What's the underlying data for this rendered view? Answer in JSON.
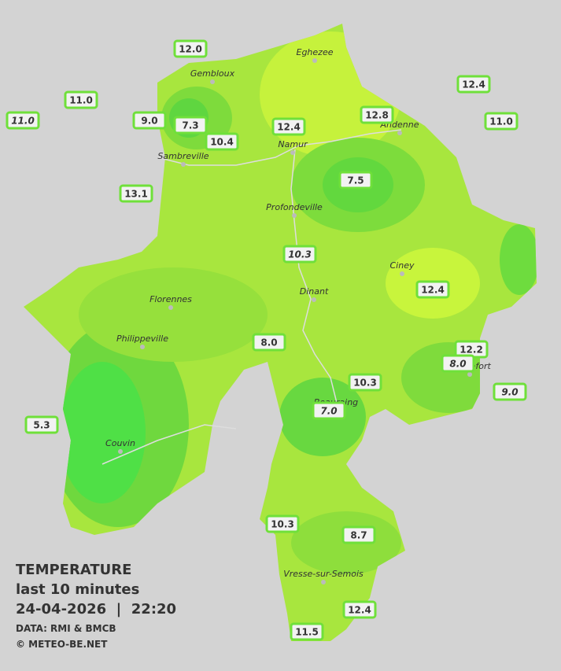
{
  "stations": [
    {
      "label": "12.0"
    },
    {
      "label": "11.0"
    },
    {
      "label": "11.0"
    },
    {
      "label": "9.0"
    },
    {
      "label": "7.3"
    },
    {
      "label": "10.4"
    },
    {
      "label": "12.4"
    },
    {
      "label": "12.8"
    },
    {
      "label": "12.4"
    },
    {
      "label": "11.0"
    },
    {
      "label": "7.5"
    },
    {
      "label": "13.1"
    },
    {
      "label": "10.3"
    },
    {
      "label": "12.4"
    },
    {
      "label": "8.0"
    },
    {
      "label": "12.2"
    },
    {
      "label": "8.0"
    },
    {
      "label": "9.0"
    },
    {
      "label": "10.3"
    },
    {
      "label": "7.0"
    },
    {
      "label": "5.3"
    },
    {
      "label": "10.3"
    },
    {
      "label": "8.7"
    },
    {
      "label": "12.4"
    },
    {
      "label": "11.5"
    }
  ],
  "towns": [
    {
      "name": "Eghezee"
    },
    {
      "name": "Gembloux"
    },
    {
      "name": "Andenne"
    },
    {
      "name": "Namur"
    },
    {
      "name": "Sambreville"
    },
    {
      "name": "Profondeville"
    },
    {
      "name": "Ciney"
    },
    {
      "name": "Dinant"
    },
    {
      "name": "Florennes"
    },
    {
      "name": "Philippeville"
    },
    {
      "name": "Rochefort"
    },
    {
      "name": "Beauraing"
    },
    {
      "name": "Couvin"
    },
    {
      "name": "Vresse-sur-Semois"
    }
  ],
  "legend": {
    "title": "TEMPERATURE",
    "subtitle": "last 10 minutes",
    "datetime": "24-04-2026  |  22:20",
    "source": "DATA: RMI & BMCB",
    "credit": "© METEO-BE.NET"
  }
}
